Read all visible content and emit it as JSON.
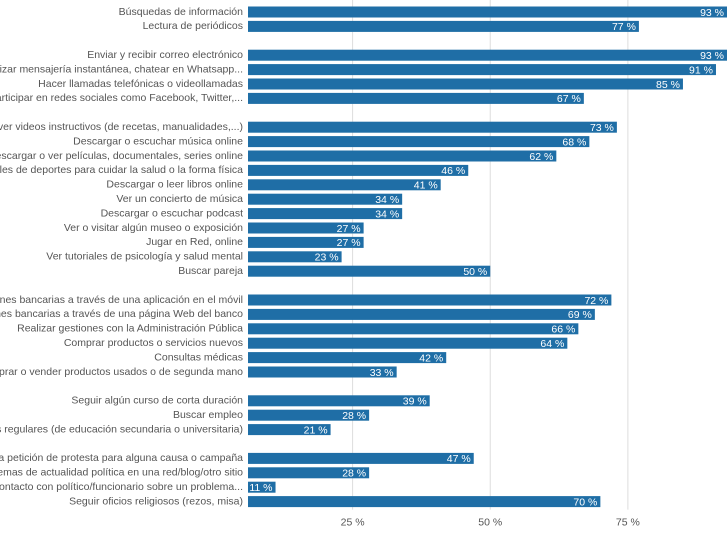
{
  "chart_data": {
    "type": "bar",
    "orientation": "horizontal",
    "color": "#1f6ea6",
    "categories": [
      "Búsquedas de información",
      "Lectura de periódicos",
      null,
      "Enviar y recibir correo electrónico",
      "Utilizar mensajería instantánea, chatear en Whatsapp...",
      "Hacer llamadas telefónicas o videollamadas",
      "r o participar en redes sociales como Facebook, Twitter,...",
      null,
      "gar o ver videos instructivos (de recetas, manualidades,...)",
      "Descargar o escuchar música online",
      "Descargar o ver películas, documentales, series online",
      "tonales de deportes para cuidar la salud o la forma física",
      "Descargar o leer libros online",
      "Ver un concierto de música",
      "Descargar o escuchar podcast",
      "Ver o visitar algún museo o exposición",
      "Jugar en Red, online",
      "Ver tutoriales de psicología y salud mental",
      "Buscar pareja",
      null,
      "r gestiones bancarias a través de una aplicación en el móvil",
      "gestiones bancarias a través de una página Web del banco",
      "Realizar gestiones con la Administración Pública",
      "Comprar productos o servicios nuevos",
      "Consultas médicas",
      "Comprar o vender productos usados o de segunda mano",
      null,
      "Seguir algún curso de corta duración",
      "Buscar empleo",
      "lases regulares (de educación secundaria o universitaria)",
      null,
      "alguna petición de protesta para alguna causa o campaña",
      "ar temas de actualidad política en una red/blog/otro sitio",
      "en contacto con político/funcionario sobre un problema...",
      "Seguir oficios religiosos (rezos, misa)"
    ],
    "values": [
      93,
      77,
      null,
      93,
      91,
      85,
      67,
      null,
      73,
      68,
      62,
      46,
      41,
      34,
      34,
      27,
      27,
      23,
      50,
      null,
      72,
      69,
      66,
      64,
      42,
      33,
      null,
      39,
      28,
      21,
      null,
      47,
      28,
      11,
      70
    ],
    "value_labels": [
      "93 %",
      "77 %",
      null,
      "93 %",
      "91 %",
      "85 %",
      "67 %",
      null,
      "73 %",
      "68 %",
      "62 %",
      "46 %",
      "41 %",
      "34 %",
      "34 %",
      "27 %",
      "27 %",
      "23 %",
      "50 %",
      null,
      "72 %",
      "69 %",
      "66 %",
      "64 %",
      "42 %",
      "33 %",
      null,
      "39 %",
      "28 %",
      "21 %",
      null,
      "47 %",
      "28 %",
      "11 %",
      "70 %"
    ],
    "xlim": [
      6,
      93
    ],
    "xticks": [
      {
        "value": 25,
        "label": "25 %"
      },
      {
        "value": 50,
        "label": "50 %"
      },
      {
        "value": 75,
        "label": "75 %"
      }
    ],
    "grid": true
  }
}
